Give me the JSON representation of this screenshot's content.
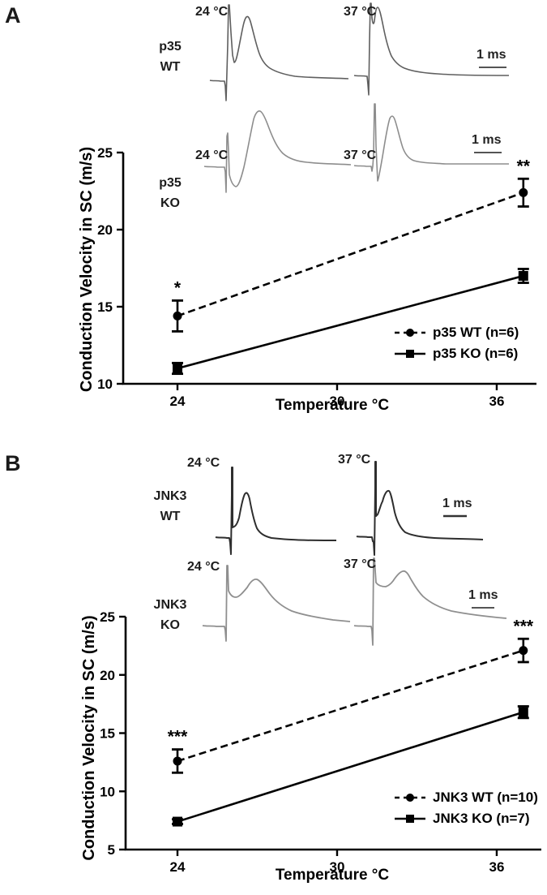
{
  "figure": {
    "panel_a": {
      "label": "A",
      "insets": {
        "row1": {
          "temp_left": "24 °C",
          "temp_right": "37 °C",
          "geno1": "p35",
          "geno2": "WT",
          "scalebar": "1 ms"
        },
        "row2": {
          "temp_left": "24 °C",
          "temp_right": "37 °C",
          "geno1": "p35",
          "geno2": "KO",
          "scalebar": "1 ms"
        }
      }
    },
    "panel_b": {
      "label": "B",
      "insets": {
        "row1": {
          "temp_left": "24 °C",
          "temp_right": "37 °C",
          "geno1": "JNK3",
          "geno2": "WT",
          "scalebar": "1 ms"
        },
        "row2": {
          "temp_left": "24 °C",
          "temp_right": "37 °C",
          "geno1": "JNK3",
          "geno2": "KO",
          "scalebar": "1 ms"
        }
      }
    }
  },
  "chart_data": [
    {
      "type": "line",
      "panel": "A",
      "title": "",
      "xlabel": "Temperature °C",
      "ylabel": "Conduction Velocity in SC (m/s)",
      "x": [
        24,
        37
      ],
      "xticks": [
        24,
        30,
        36
      ],
      "yticks": [
        10,
        15,
        20,
        25
      ],
      "xlim": [
        21.8,
        37.6
      ],
      "ylim": [
        10,
        25
      ],
      "grid": false,
      "legend_position": "lower right",
      "series": [
        {
          "name": "p35 WT (n=6)",
          "marker": "circle",
          "line": "dashed",
          "values": [
            14.4,
            22.4
          ],
          "errors": [
            1.0,
            0.9
          ],
          "significance": [
            "*",
            "**"
          ]
        },
        {
          "name": "p35 KO (n=6)",
          "marker": "square",
          "line": "solid",
          "values": [
            11.0,
            17.0
          ],
          "errors": [
            0.35,
            0.45
          ],
          "significance": [
            null,
            null
          ]
        }
      ]
    },
    {
      "type": "line",
      "panel": "B",
      "title": "",
      "xlabel": "Temperature °C",
      "ylabel": "Conduction Velocity in SC (m/s)",
      "x": [
        24,
        37
      ],
      "xticks": [
        24,
        30,
        36
      ],
      "yticks": [
        5,
        10,
        15,
        20,
        25
      ],
      "xlim": [
        21.8,
        37.6
      ],
      "ylim": [
        5,
        25
      ],
      "grid": false,
      "legend_position": "lower right",
      "series": [
        {
          "name": "JNK3 WT (n=10)",
          "marker": "circle",
          "line": "dashed",
          "values": [
            12.6,
            22.1
          ],
          "errors": [
            1.0,
            1.0
          ],
          "significance": [
            "***",
            "***"
          ]
        },
        {
          "name": "JNK3 KO (n=7)",
          "marker": "square",
          "line": "solid",
          "values": [
            7.4,
            16.8
          ],
          "errors": [
            0.2,
            0.5
          ],
          "significance": [
            null,
            null
          ]
        }
      ]
    }
  ],
  "colors": {
    "ink": "#000000",
    "trace_dark": "#2e2e2e",
    "trace_medium": "#5f5f5f",
    "trace_gray": "#8d8d8d"
  }
}
